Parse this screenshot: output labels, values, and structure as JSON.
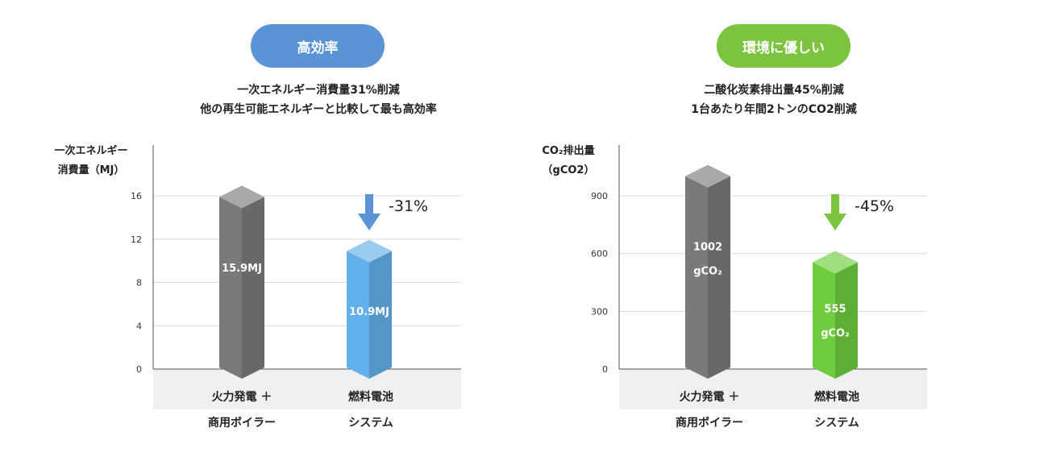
{
  "colors": {
    "left_accent": "#5a93d6",
    "right_accent": "#7cc43f",
    "gray_bar": "#7a7a7a",
    "blue_bar": "#63b1ea",
    "green_bar": "#6fcc3e",
    "floor": "#f0f0f0"
  },
  "chart_data": [
    {
      "type": "bar",
      "badge": "高効率",
      "subtitle_lines": [
        "一次エネルギー消費量31%削減",
        "他の再生可能エネルギーと比較して最も高効率"
      ],
      "ylabel_lines": [
        "一次エネルギー",
        "消費量（MJ）"
      ],
      "yticks": [
        "16",
        "12",
        "8",
        "4",
        "0"
      ],
      "ylim": [
        0,
        16
      ],
      "categories": [
        {
          "line1": "火力発電 ＋",
          "line2": "商用ボイラー"
        },
        {
          "line1": "燃料電池",
          "line2": "システム"
        }
      ],
      "values": [
        15.9,
        10.9
      ],
      "data_labels": [
        [
          "15.9MJ"
        ],
        [
          "10.9MJ"
        ]
      ],
      "annotation": "-31%",
      "arrow_icon": "down-arrow-icon"
    },
    {
      "type": "bar",
      "badge": "環境に優しい",
      "subtitle_lines": [
        "二酸化炭素排出量45%削減",
        "1台あたり年間2トンのCO2削減"
      ],
      "ylabel_lines": [
        "CO₂排出量",
        "（gCO2）"
      ],
      "yticks": [
        "900",
        "600",
        "300",
        "0"
      ],
      "ylim": [
        0,
        900
      ],
      "categories": [
        {
          "line1": "火力発電 ＋",
          "line2": "商用ボイラー"
        },
        {
          "line1": "燃料電池",
          "line2": "システム"
        }
      ],
      "values": [
        1002,
        555
      ],
      "data_labels": [
        [
          "1002",
          "gCO₂"
        ],
        [
          "555",
          "gCO₂"
        ]
      ],
      "annotation": "-45%",
      "arrow_icon": "down-arrow-icon"
    }
  ]
}
